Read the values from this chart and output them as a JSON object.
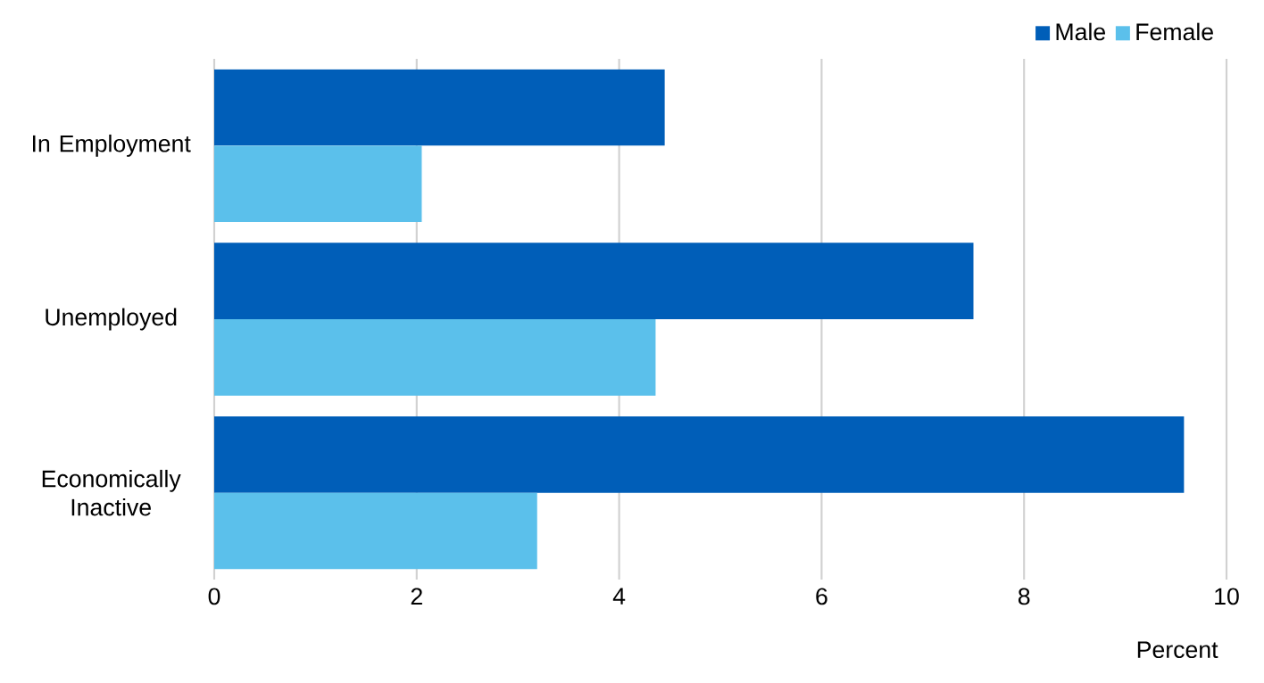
{
  "chart_data": {
    "type": "bar",
    "orientation": "horizontal",
    "categories": [
      "In Employment",
      "Unemployed",
      "Economically Inactive"
    ],
    "series": [
      {
        "name": "Male",
        "color": "#005eb8",
        "values": [
          4.45,
          7.5,
          9.58
        ]
      },
      {
        "name": "Female",
        "color": "#5bc0eb",
        "values": [
          2.05,
          4.36,
          3.19
        ]
      }
    ],
    "xlabel": "Percent",
    "xlim": [
      0,
      10
    ],
    "xticks": [
      0,
      2,
      4,
      6,
      8,
      10
    ],
    "grid": "x",
    "legend": "top right"
  }
}
